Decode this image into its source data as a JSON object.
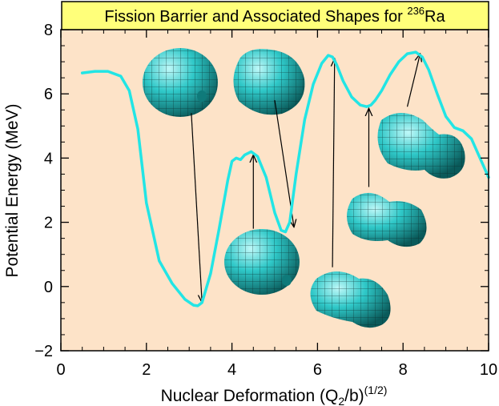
{
  "chart_data": {
    "type": "line",
    "title": "Fission Barrier and Associated Shapes for ",
    "title_superscript": "236",
    "title_element": "Ra",
    "xlabel_main": "Nuclear Deformation (Q",
    "xlabel_sub": "2",
    "xlabel_tail": "/b)",
    "xlabel_sup": "(1/2)",
    "ylabel": "Potential Energy (MeV)",
    "xlim": [
      0,
      10
    ],
    "ylim": [
      -2,
      8
    ],
    "x_ticks": [
      0,
      2,
      4,
      6,
      8,
      10
    ],
    "y_ticks": [
      "−2",
      "0",
      "2",
      "4",
      "6",
      "8"
    ],
    "y_tick_values": [
      -2,
      0,
      2,
      4,
      6,
      8
    ],
    "colors": {
      "curve": "#22e5e5",
      "plot_bg": "#fde3c8",
      "title_bg": "#ffff7a",
      "shape": "#1fa5a5"
    },
    "series": [
      {
        "x": [
          0.5,
          0.8,
          1.1,
          1.4,
          1.6,
          1.8,
          2.0,
          2.3,
          2.6,
          2.9,
          3.1,
          3.2,
          3.3,
          3.5,
          3.7,
          3.9,
          4.0,
          4.1,
          4.2,
          4.3,
          4.45,
          4.6,
          4.8,
          5.0,
          5.15,
          5.25,
          5.35,
          5.5,
          5.7,
          5.9,
          6.1,
          6.25,
          6.35,
          6.45,
          6.6,
          6.8,
          7.0,
          7.15,
          7.25,
          7.35,
          7.5,
          7.7,
          7.9,
          8.1,
          8.3,
          8.45,
          8.6,
          8.8,
          9.0,
          9.2,
          9.4,
          9.6,
          9.8,
          10.0
        ],
        "y": [
          6.65,
          6.7,
          6.7,
          6.55,
          6.1,
          4.9,
          2.6,
          0.8,
          0.1,
          -0.4,
          -0.58,
          -0.6,
          -0.5,
          0.4,
          1.8,
          3.3,
          3.9,
          4.0,
          3.95,
          4.1,
          4.2,
          4.05,
          3.4,
          2.3,
          1.75,
          1.7,
          2.0,
          3.5,
          5.2,
          6.3,
          6.95,
          7.2,
          7.15,
          6.9,
          6.4,
          5.9,
          5.65,
          5.6,
          5.65,
          5.8,
          6.1,
          6.6,
          7.0,
          7.25,
          7.3,
          7.15,
          6.75,
          6.0,
          5.3,
          4.95,
          4.85,
          4.6,
          4.0,
          3.4
        ]
      }
    ],
    "arrows": [
      {
        "from": [
          3.05,
          5.4
        ],
        "to": [
          3.3,
          -0.5
        ]
      },
      {
        "from": [
          4.5,
          1.8
        ],
        "to": [
          4.5,
          4.1
        ]
      },
      {
        "from": [
          5.0,
          5.8
        ],
        "to": [
          5.45,
          1.85
        ]
      },
      {
        "from": [
          6.35,
          0.6
        ],
        "to": [
          6.4,
          7.1
        ]
      },
      {
        "from": [
          7.2,
          3.1
        ],
        "to": [
          7.2,
          5.55
        ]
      },
      {
        "from": [
          8.1,
          5.6
        ],
        "to": [
          8.4,
          7.25
        ]
      }
    ]
  }
}
